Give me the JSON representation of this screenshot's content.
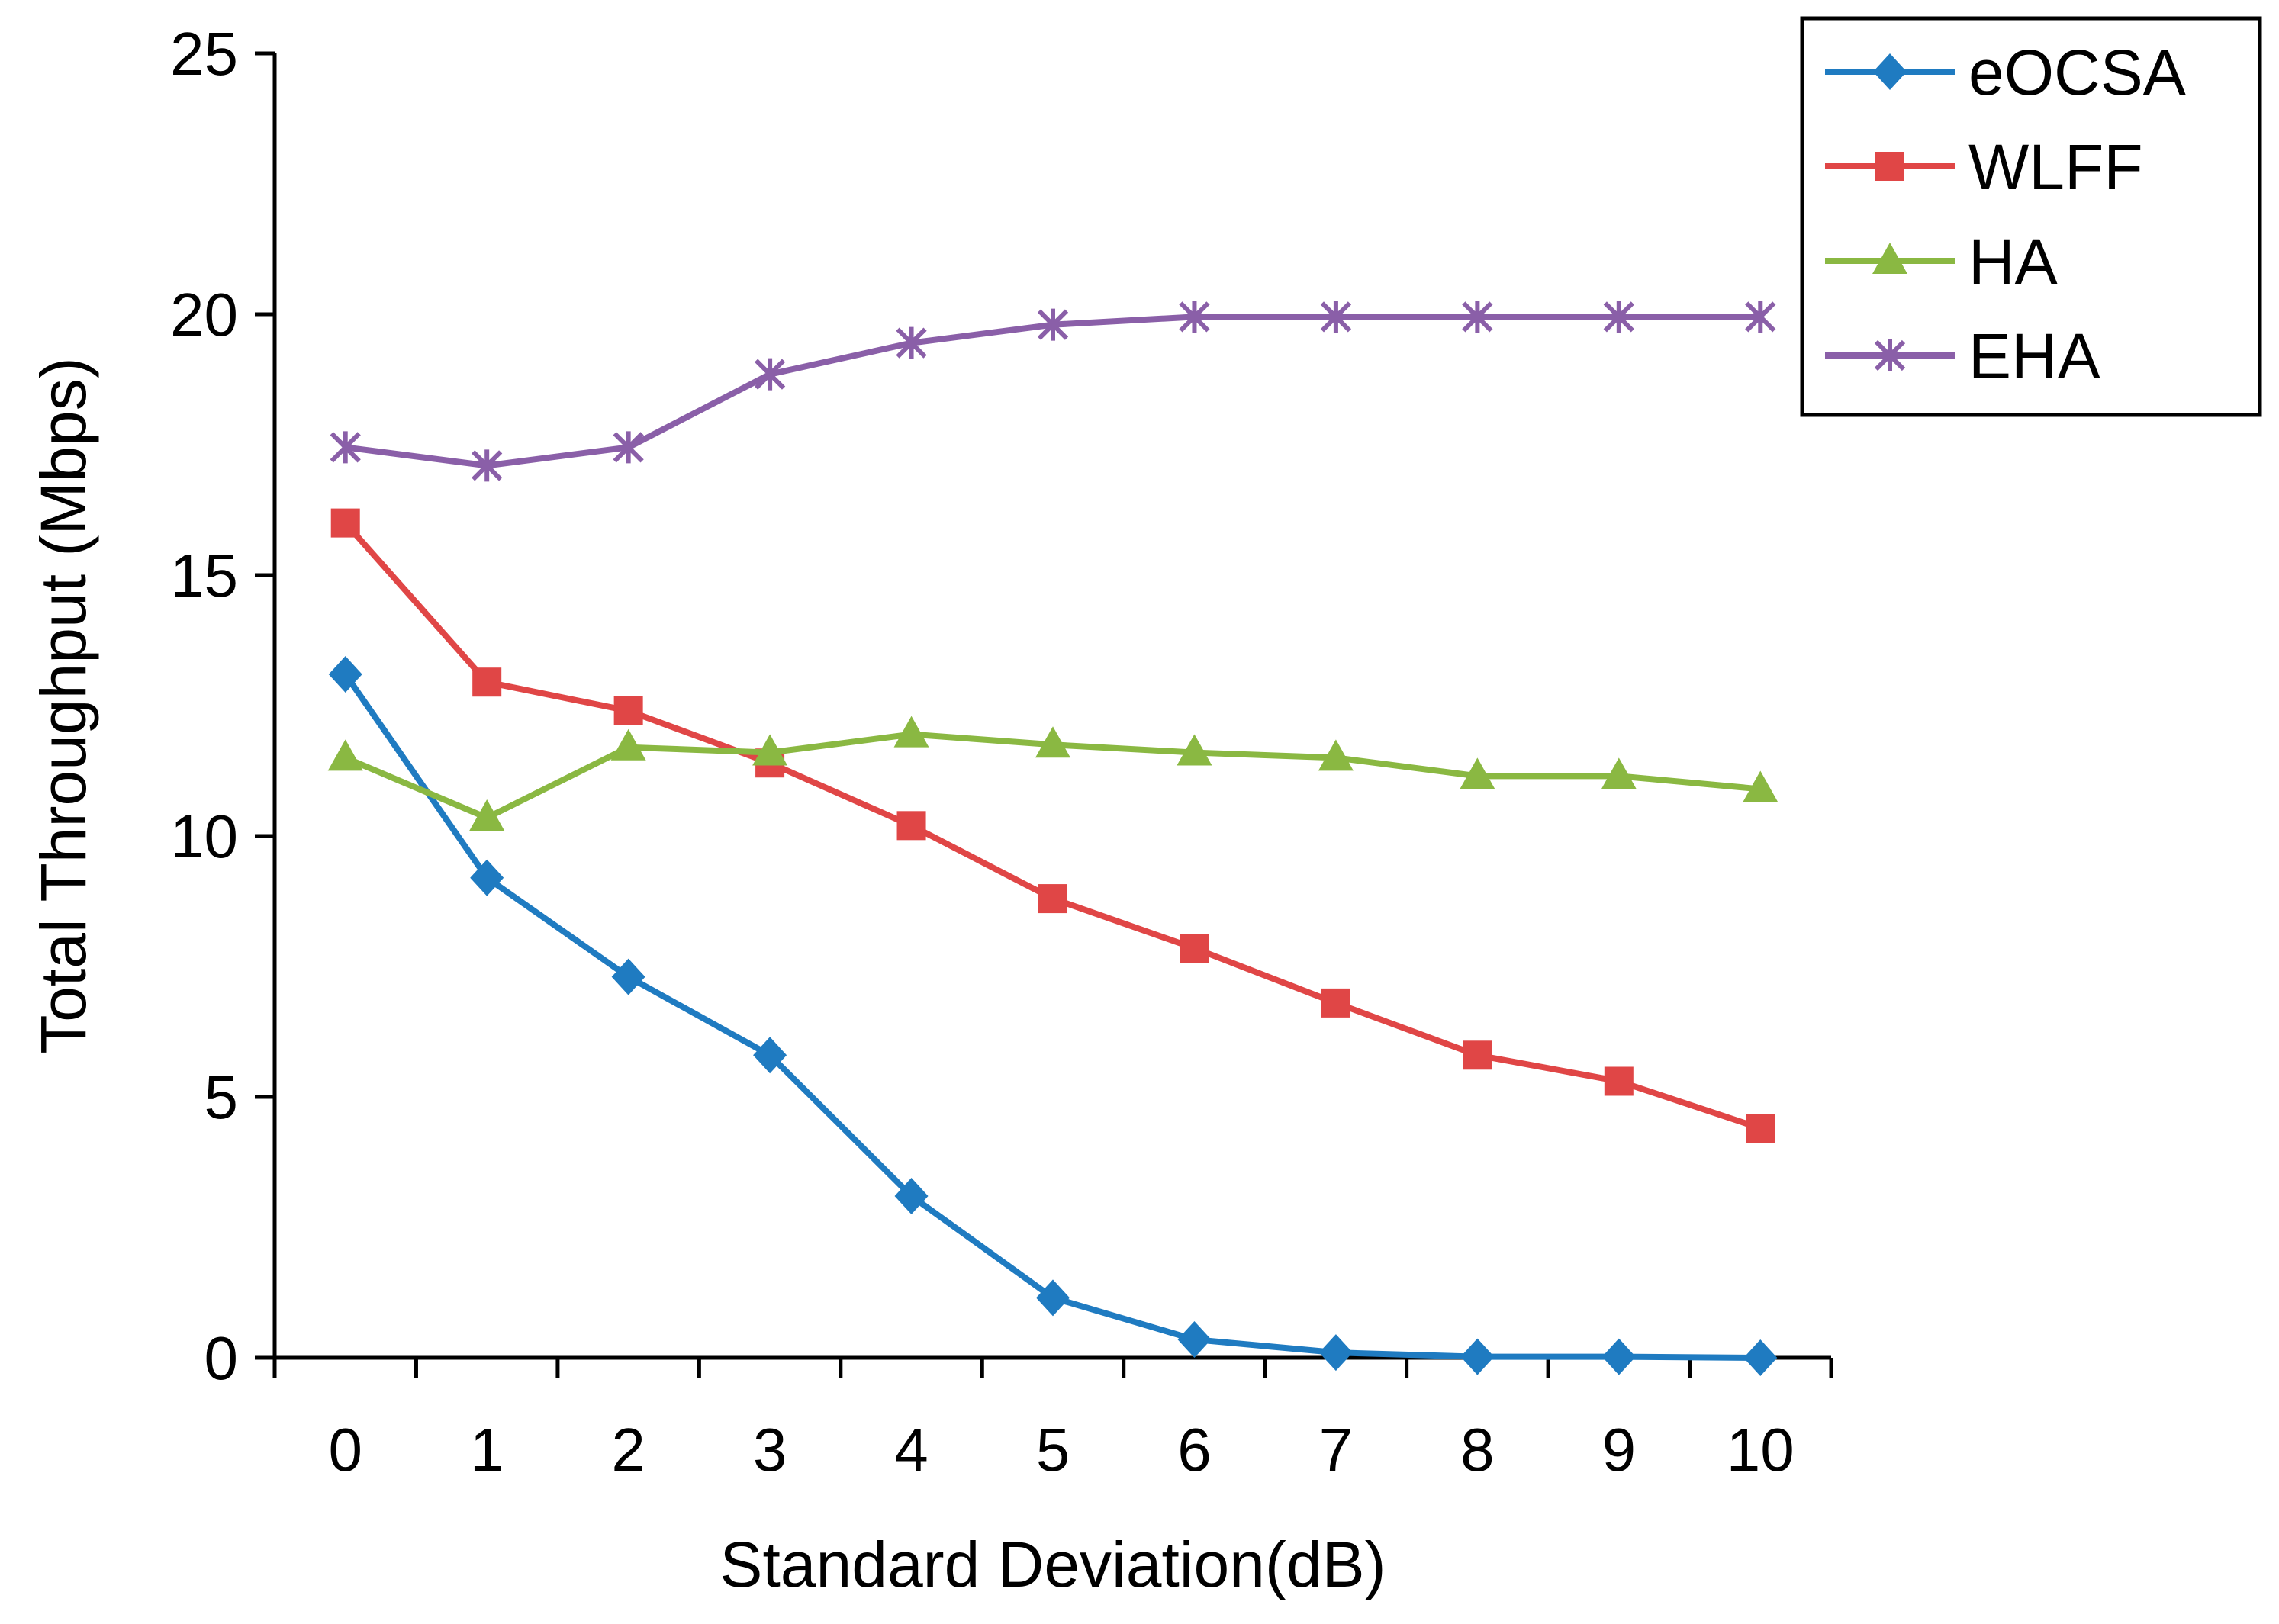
{
  "chart_data": {
    "type": "line",
    "xlabel": "Standard Deviation(dB)",
    "ylabel": "Total Throughput (Mbps)",
    "x": [
      0,
      1,
      2,
      3,
      4,
      5,
      6,
      7,
      8,
      9,
      10
    ],
    "x_tick_labels": [
      "0",
      "1",
      "2",
      "3",
      "4",
      "5",
      "6",
      "7",
      "8",
      "9",
      "10"
    ],
    "ylim": [
      0,
      25
    ],
    "y_ticks": [
      0,
      5,
      10,
      15,
      20,
      25
    ],
    "y_tick_labels": [
      "0",
      "5",
      "10",
      "15",
      "20",
      "25"
    ],
    "grid": false,
    "legend_position": "top-right",
    "series": [
      {
        "name": "eOCSA",
        "color": "#1f7bc1",
        "marker": "diamond",
        "values": [
          13.1,
          9.2,
          7.3,
          5.8,
          3.1,
          1.15,
          0.35,
          0.1,
          0.02,
          0.02,
          0.0
        ]
      },
      {
        "name": "WLFF",
        "color": "#e04646",
        "marker": "square",
        "values": [
          16.0,
          12.95,
          12.4,
          11.4,
          10.2,
          8.8,
          7.85,
          6.8,
          5.8,
          5.3,
          4.4
        ]
      },
      {
        "name": "HA",
        "color": "#8ab842",
        "marker": "triangle",
        "values": [
          11.5,
          10.35,
          11.7,
          11.6,
          11.95,
          11.75,
          11.6,
          11.5,
          11.15,
          11.15,
          10.9
        ]
      },
      {
        "name": "EHA",
        "color": "#8a5fa8",
        "marker": "star",
        "values": [
          17.45,
          17.1,
          17.45,
          18.85,
          19.45,
          19.8,
          19.95,
          19.95,
          19.95,
          19.95,
          19.95
        ]
      }
    ]
  }
}
